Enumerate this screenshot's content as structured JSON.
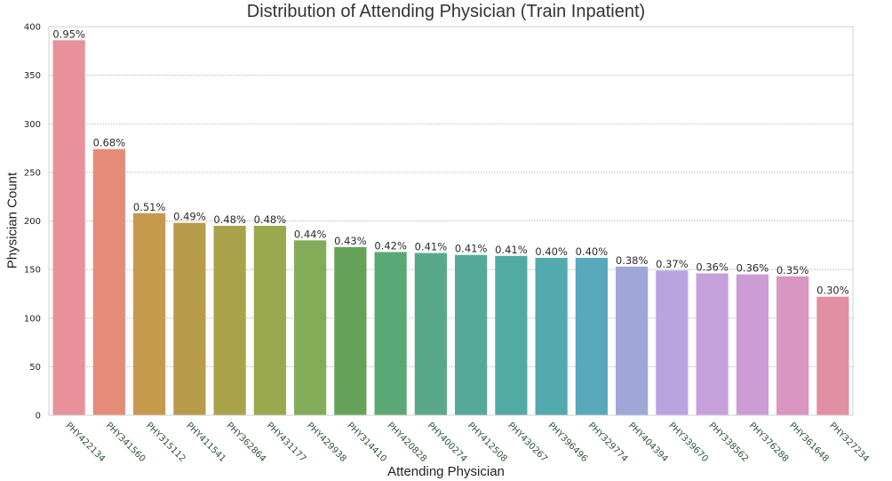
{
  "chart_data": {
    "type": "bar",
    "title": "Distribution of  Attending Physician (Train Inpatient)",
    "xlabel": "Attending Physician",
    "ylabel": "Physician Count",
    "ylim": [
      0,
      400
    ],
    "yticks": [
      0,
      50,
      100,
      150,
      200,
      250,
      300,
      350,
      400
    ],
    "grid": true,
    "categories": [
      "PHY422134",
      "PHY341560",
      "PHY315112",
      "PHY411541",
      "PHY362864",
      "PHY431177",
      "PHY429938",
      "PHY314410",
      "PHY420828",
      "PHY400274",
      "PHY412508",
      "PHY430267",
      "PHY396496",
      "PHY329774",
      "PHY404394",
      "PHY339670",
      "PHY338562",
      "PHY376288",
      "PHY361648",
      "PHY327234"
    ],
    "values": [
      386,
      274,
      208,
      198,
      195,
      195,
      180,
      173,
      168,
      167,
      165,
      164,
      162,
      162,
      153,
      149,
      146,
      145,
      143,
      122
    ],
    "labels": [
      "0.95%",
      "0.68%",
      "0.51%",
      "0.49%",
      "0.48%",
      "0.48%",
      "0.44%",
      "0.43%",
      "0.42%",
      "0.41%",
      "0.41%",
      "0.41%",
      "0.40%",
      "0.40%",
      "0.38%",
      "0.37%",
      "0.36%",
      "0.36%",
      "0.35%",
      "0.30%"
    ],
    "colors": [
      "#e8919b",
      "#e58c79",
      "#c59a4d",
      "#b79b4a",
      "#a9a24a",
      "#9aa94e",
      "#82ac58",
      "#64a357",
      "#5aa876",
      "#5aa88a",
      "#55a999",
      "#53aaa4",
      "#52aaae",
      "#57a9bb",
      "#9fa6d8",
      "#b9a3e0",
      "#c5a0db",
      "#cc9dd4",
      "#d996c2",
      "#e08fa5"
    ]
  }
}
